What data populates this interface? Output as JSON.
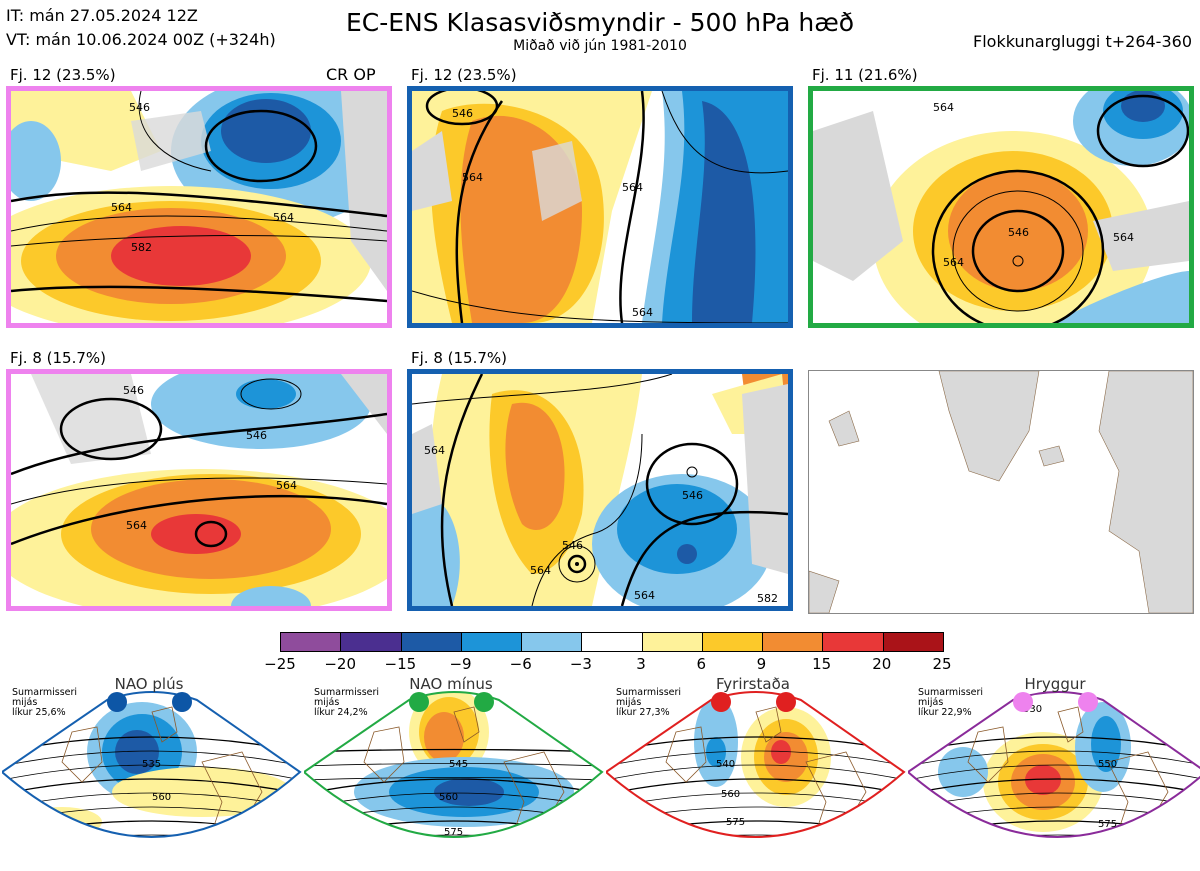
{
  "header": {
    "it_line": "IT: mán 27.05.2024 12Z",
    "vt_line": "VT: mán 10.06.2024 00Z  (+324h)",
    "title": "EC-ENS Klasasviðsmyndir - 500 hPa hæð",
    "subtitle": "Miðað við jún 1981-2010",
    "window": "Flokkunargluggi t+264-360"
  },
  "panels": [
    {
      "label": "Fj. 12 (23.5%)",
      "border": "#ee82ee",
      "extra": "CR OP",
      "contours": [
        "546",
        "564",
        "564",
        "582"
      ]
    },
    {
      "label": "Fj. 12 (23.5%)",
      "border": "#1560b0",
      "contours": [
        "546",
        "564",
        "564",
        "564"
      ]
    },
    {
      "label": "Fj. 11 (21.6%)",
      "border": "#22aa44",
      "contours": [
        "564",
        "546",
        "564",
        "564"
      ]
    },
    {
      "label": "Fj. 8 (15.7%)",
      "border": "#ee82ee",
      "contours": [
        "546",
        "546",
        "564",
        "564"
      ]
    },
    {
      "label": "Fj. 8 (15.7%)",
      "border": "#1560b0",
      "contours": [
        "564",
        "546",
        "546",
        "564",
        "564",
        "582"
      ]
    }
  ],
  "colorbar": {
    "colors": [
      "#8f4c9c",
      "#4b2f90",
      "#1d5aa6",
      "#1d94d8",
      "#86c7ec",
      "#ffffff",
      "#fef29a",
      "#fcc92a",
      "#f28c32",
      "#e83838",
      "#aa1318"
    ],
    "labels": [
      "−25",
      "−20",
      "−15",
      "−9",
      "−6",
      "−3",
      "3",
      "6",
      "9",
      "15",
      "20",
      "25"
    ]
  },
  "regimes": [
    {
      "title": "NAO plús",
      "season": "Sumarmisseri",
      "mean": "mijás",
      "prob": "líkur 25,6%",
      "dot_color": "#0d56a6",
      "border": "#1560b0",
      "contours": [
        "535",
        "560"
      ]
    },
    {
      "title": "NAO mínus",
      "season": "Sumarmisseri",
      "mean": "mijás",
      "prob": "líkur 24,2%",
      "dot_color": "#22aa44",
      "border": "#22aa44",
      "contours": [
        "545",
        "560",
        "575"
      ]
    },
    {
      "title": "Fyrirstaða",
      "season": "Sumarmisseri",
      "mean": "mijás",
      "prob": "líkur 27,3%",
      "dot_color": "#e02020",
      "border": "#e02020",
      "contours": [
        "540",
        "560",
        "575"
      ]
    },
    {
      "title": "Hryggur",
      "season": "Sumarmisseri",
      "mean": "mijás",
      "prob": "líkur 22,9%",
      "dot_color": "#ee82ee",
      "border": "#8a2b9a",
      "contours": [
        "530",
        "550",
        "575"
      ]
    }
  ]
}
